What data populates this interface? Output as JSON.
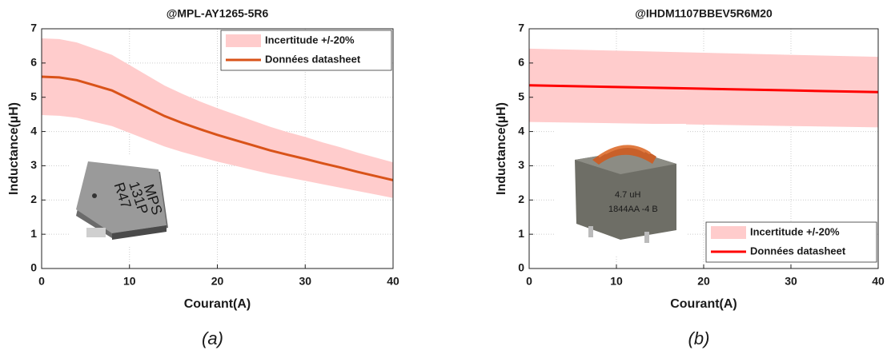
{
  "chart_data": [
    {
      "type": "line",
      "title": "@MPL-AY1265-5R6",
      "x_label": "Courant(A)",
      "y_label": "Inductance(µH)",
      "caption": "(a)",
      "x": [
        0,
        2,
        4,
        6,
        8,
        10,
        12,
        14,
        16,
        18,
        20,
        22,
        24,
        26,
        28,
        30,
        32,
        34,
        36,
        38,
        40
      ],
      "series": [
        {
          "name": "Incertitude +/-20%",
          "color": "#ffcccc",
          "kind": "band",
          "upper": [
            6.72,
            6.7,
            6.6,
            6.42,
            6.24,
            5.94,
            5.64,
            5.34,
            5.1,
            4.88,
            4.68,
            4.5,
            4.32,
            4.14,
            3.98,
            3.84,
            3.68,
            3.54,
            3.38,
            3.24,
            3.1
          ],
          "lower": [
            4.48,
            4.46,
            4.4,
            4.28,
            4.16,
            3.96,
            3.76,
            3.56,
            3.4,
            3.26,
            3.12,
            3.0,
            2.88,
            2.76,
            2.66,
            2.56,
            2.46,
            2.36,
            2.26,
            2.16,
            2.06
          ]
        },
        {
          "name": "Données datasheet",
          "color": "#d95319",
          "kind": "line",
          "values": [
            5.6,
            5.58,
            5.5,
            5.35,
            5.2,
            4.95,
            4.7,
            4.45,
            4.25,
            4.07,
            3.9,
            3.75,
            3.6,
            3.45,
            3.32,
            3.2,
            3.07,
            2.95,
            2.82,
            2.7,
            2.58
          ]
        }
      ],
      "xlim": [
        0,
        40
      ],
      "ylim": [
        0,
        7
      ],
      "xticks": [
        0,
        10,
        20,
        30,
        40
      ],
      "yticks": [
        0,
        1,
        2,
        3,
        4,
        5,
        6,
        7
      ],
      "grid": true,
      "legend": "top-right"
    },
    {
      "type": "line",
      "title": "@IHDM1107BBEV5R6M20",
      "x_label": "Courant(A)",
      "y_label": "Inductance(µH)",
      "caption": "(b)",
      "x": [
        0,
        10,
        20,
        30,
        40
      ],
      "series": [
        {
          "name": "Incertitude +/-20%",
          "color": "#ffcccc",
          "kind": "band",
          "upper": [
            6.42,
            6.36,
            6.3,
            6.24,
            6.18
          ],
          "lower": [
            4.28,
            4.24,
            4.2,
            4.16,
            4.12
          ]
        },
        {
          "name": "Données datasheet",
          "color": "#ff0000",
          "kind": "line",
          "values": [
            5.35,
            5.3,
            5.25,
            5.2,
            5.15
          ]
        }
      ],
      "xlim": [
        0,
        40
      ],
      "ylim": [
        0,
        7
      ],
      "xticks": [
        0,
        10,
        20,
        30,
        40
      ],
      "yticks": [
        0,
        1,
        2,
        3,
        4,
        5,
        6,
        7
      ],
      "grid": true,
      "legend": "bottom-right"
    }
  ]
}
